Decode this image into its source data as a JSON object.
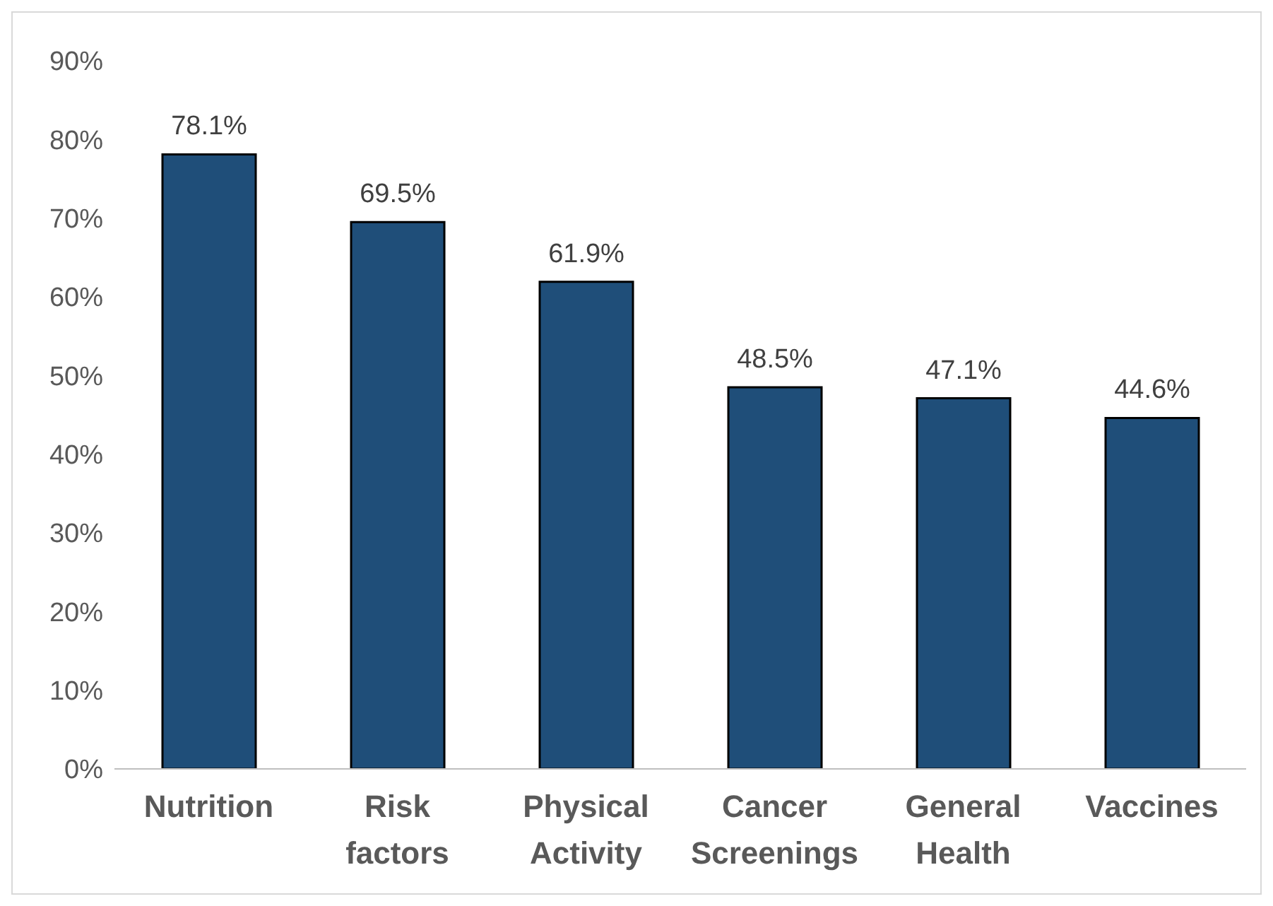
{
  "chart_data": {
    "type": "bar",
    "categories": [
      "Nutrition",
      "Risk factors",
      "Physical Activity",
      "Cancer Screenings",
      "General Health",
      "Vaccines"
    ],
    "values": [
      78.1,
      69.5,
      61.9,
      48.5,
      47.1,
      44.6
    ],
    "value_labels": [
      "78.1%",
      "69.5%",
      "61.9%",
      "48.5%",
      "47.1%",
      "44.6%"
    ],
    "color": "#1f4e79",
    "ylim": [
      0,
      90
    ],
    "yticks": [
      {
        "value": 0,
        "label": "0%"
      },
      {
        "value": 10,
        "label": "10%"
      },
      {
        "value": 20,
        "label": "20%"
      },
      {
        "value": 30,
        "label": "30%"
      },
      {
        "value": 40,
        "label": "40%"
      },
      {
        "value": 50,
        "label": "50%"
      },
      {
        "value": 60,
        "label": "60%"
      },
      {
        "value": 70,
        "label": "70%"
      },
      {
        "value": 80,
        "label": "80%"
      },
      {
        "value": 90,
        "label": "90%"
      }
    ],
    "grid": false,
    "legend": false
  }
}
